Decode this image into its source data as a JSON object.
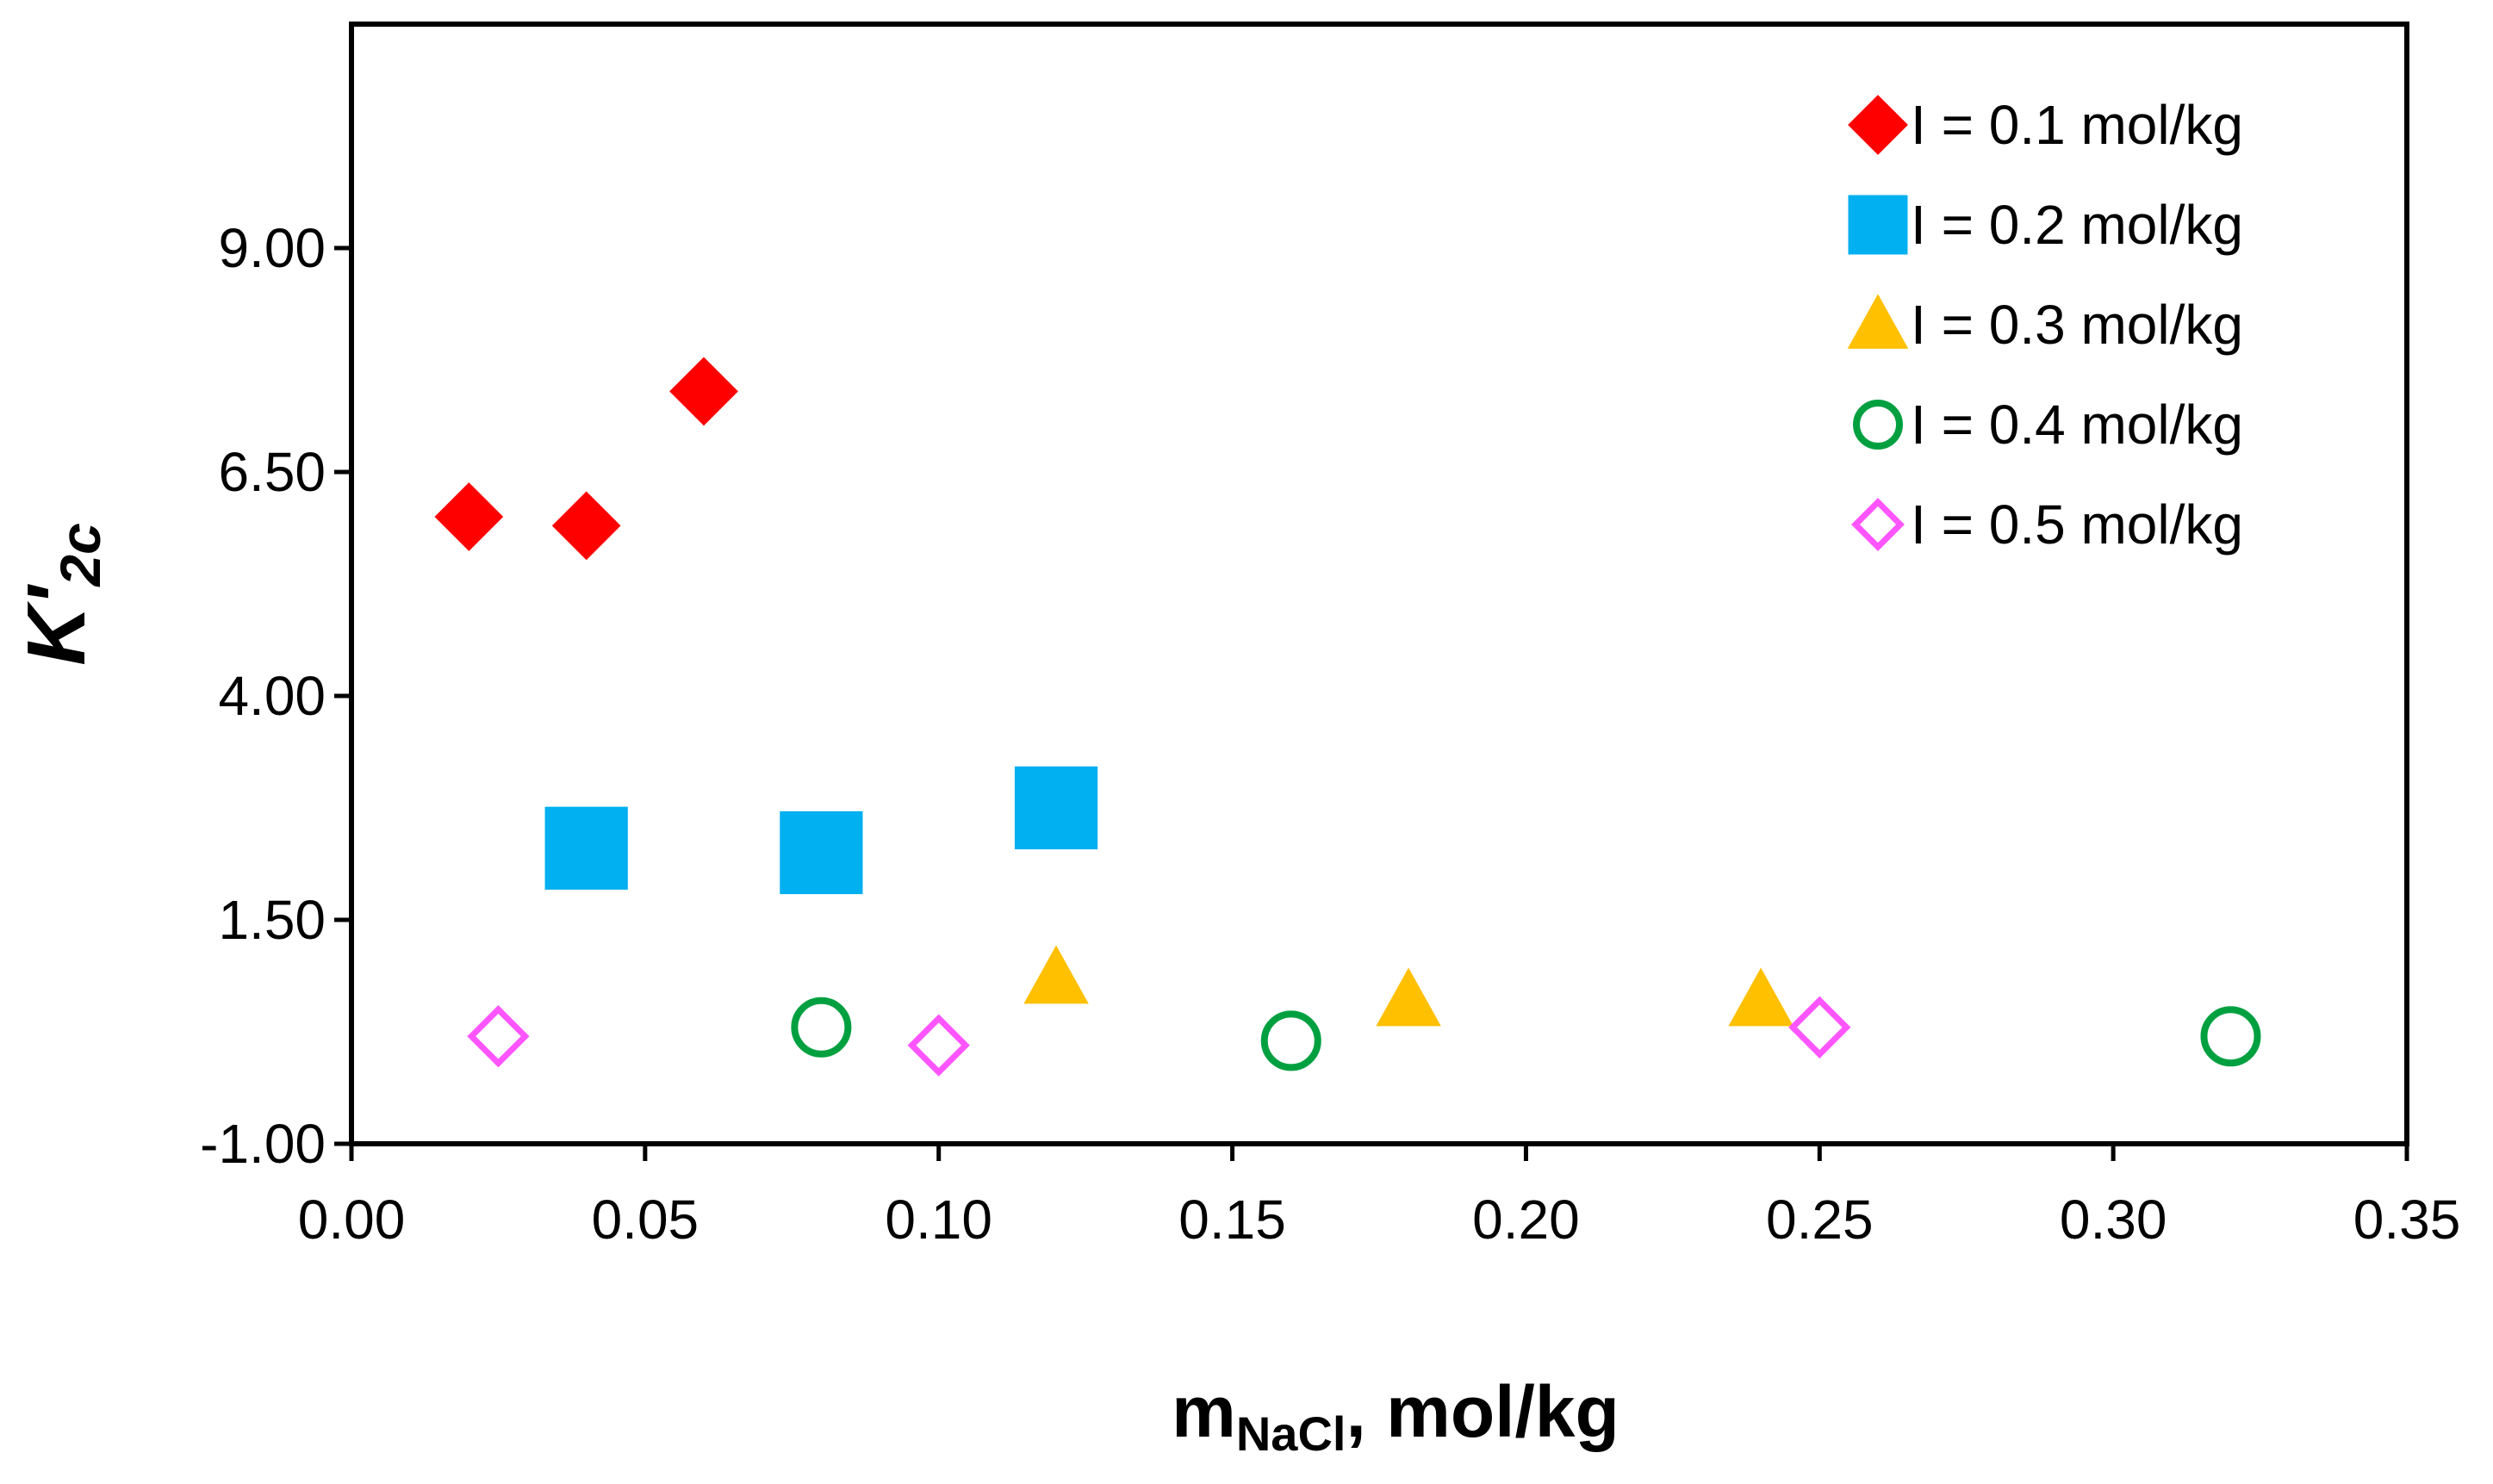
{
  "chart_data": {
    "type": "scatter",
    "title": "",
    "xlabel": {
      "main": "m",
      "sub": "NaCl",
      "rest": ", mol/kg"
    },
    "ylabel": {
      "main": "K'",
      "sub": "2c"
    },
    "xlim": [
      0,
      0.35
    ],
    "ylim": [
      -1.0,
      11.5
    ],
    "x_ticks": [
      "0.00",
      "0.05",
      "0.10",
      "0.15",
      "0.20",
      "0.25",
      "0.30",
      "0.35"
    ],
    "x_tick_values": [
      0,
      0.05,
      0.1,
      0.15,
      0.2,
      0.25,
      0.3,
      0.35
    ],
    "y_ticks": [
      "-1.00",
      "1.50",
      "4.00",
      "6.50",
      "9.00"
    ],
    "y_tick_values": [
      -1.0,
      1.5,
      4.0,
      6.5,
      9.0
    ],
    "grid": false,
    "legend_position": "top-right",
    "series": [
      {
        "name": "I = 0.1 mol/kg",
        "marker": "diamond-filled",
        "color": "#ff0000",
        "x": [
          0.02,
          0.04,
          0.06
        ],
        "y": [
          6.0,
          5.9,
          7.4
        ]
      },
      {
        "name": "I = 0.2 mol/kg",
        "marker": "square-filled",
        "color": "#00b0f0",
        "x": [
          0.04,
          0.08,
          0.12
        ],
        "y": [
          2.3,
          2.25,
          2.75
        ]
      },
      {
        "name": "I = 0.3 mol/kg",
        "marker": "triangle-filled",
        "color": "#ffc000",
        "x": [
          0.12,
          0.18,
          0.24
        ],
        "y": [
          0.85,
          0.6,
          0.6
        ]
      },
      {
        "name": "I = 0.4 mol/kg",
        "marker": "circle-open",
        "color": "#00a040",
        "x": [
          0.08,
          0.16,
          0.32
        ],
        "y": [
          0.3,
          0.15,
          0.2
        ]
      },
      {
        "name": "I = 0.5 mol/kg",
        "marker": "diamond-open",
        "color": "#ff55ff",
        "x": [
          0.025,
          0.1,
          0.25
        ],
        "y": [
          0.2,
          0.1,
          0.3
        ]
      }
    ]
  }
}
